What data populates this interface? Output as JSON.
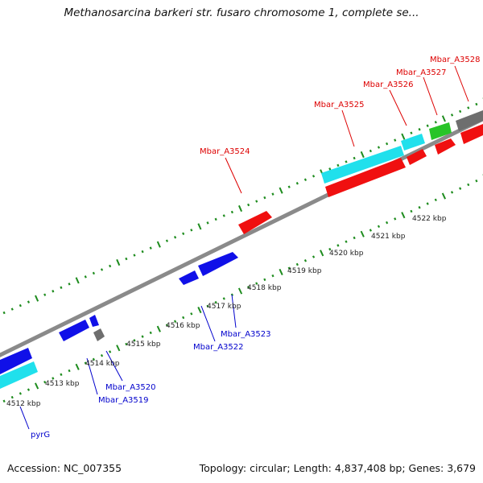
{
  "title": "Methanosarcina barkeri str. fusaro chromosome 1, complete se...",
  "colors": {
    "forward_cds": "#f01010",
    "forward_alt": "#20e0ec",
    "reverse_cds": "#1010e8",
    "grey_feature": "#6e6e6e",
    "green_feature": "#28c428",
    "backbone": "#8a8a8a",
    "ticks": "#1e8c1e",
    "forward_label": "#dd0000",
    "reverse_label": "#0000cc"
  },
  "ticks": [
    "4512 kbp",
    "4513 kbp",
    "4514 kbp",
    "4515 kbp",
    "4516 kbp",
    "4517 kbp",
    "4518 kbp",
    "4519 kbp",
    "4520 kbp",
    "4521 kbp",
    "4522 kbp"
  ],
  "gene_labels": {
    "forward": [
      "Mbar_A3524",
      "Mbar_A3525",
      "Mbar_A3526",
      "Mbar_A3527",
      "Mbar_A3528"
    ],
    "reverse": [
      "pyrG",
      "Mbar_A3519",
      "Mbar_A3520",
      "Mbar_A3522",
      "Mbar_A3523"
    ]
  },
  "footer": {
    "accession": "Accession: NC_007355",
    "summary": "Topology: circular; Length: 4,837,408 bp; Genes: 3,679"
  }
}
